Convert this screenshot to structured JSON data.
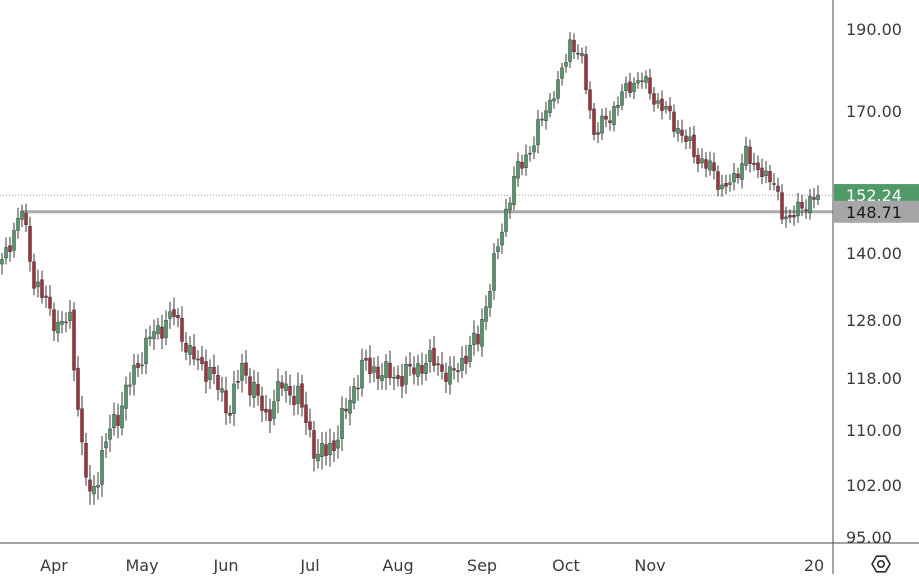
{
  "colors": {
    "background": "#ffffff",
    "up": "#4f9a67",
    "down": "#a3303a",
    "wick": "#3a3a3a",
    "axis_line": "#4a4a4a",
    "axis_text": "#3b3b3b",
    "level_line": "#a8a8a8",
    "last_price_dotted": "#9a9a9a",
    "last_price_badge": "#4f9a67",
    "level_badge": "#a6a6a6"
  },
  "chart_data": {
    "type": "candlestick",
    "ylim": [
      95,
      193
    ],
    "y_ticks": [
      95,
      102,
      110,
      118,
      128,
      140,
      170,
      190
    ],
    "y_tick_labels": [
      "95.00",
      "102.00",
      "110.00",
      "118.00",
      "128.00",
      "140.00",
      "170.00",
      "190.00"
    ],
    "x_tick_labels": [
      "Apr",
      "May",
      "Jun",
      "Jul",
      "Aug",
      "Sep",
      "Oct",
      "Nov",
      "20"
    ],
    "x_tick_indices": [
      13,
      35,
      56,
      77,
      99,
      120,
      141,
      162,
      203
    ],
    "total_bars": 205,
    "last_price": 152.24,
    "last_price_label": "152.24",
    "horizontal_level": 148.71,
    "horizontal_level_label": "148.71",
    "horizontal_level_start_index": 5,
    "settings_icon": "gear-icon",
    "waypoints": [
      [
        0,
        138
      ],
      [
        5,
        149
      ],
      [
        8,
        135
      ],
      [
        14,
        127
      ],
      [
        17,
        128
      ],
      [
        20,
        107
      ],
      [
        22,
        100
      ],
      [
        27,
        110
      ],
      [
        30,
        114
      ],
      [
        33,
        119
      ],
      [
        37,
        125
      ],
      [
        40,
        127
      ],
      [
        43,
        129
      ],
      [
        47,
        122
      ],
      [
        52,
        119
      ],
      [
        57,
        113
      ],
      [
        60,
        120
      ],
      [
        66,
        112
      ],
      [
        70,
        117
      ],
      [
        74,
        115
      ],
      [
        79,
        106
      ],
      [
        83,
        108
      ],
      [
        86,
        113
      ],
      [
        90,
        120
      ],
      [
        95,
        119
      ],
      [
        99,
        118
      ],
      [
        104,
        120
      ],
      [
        108,
        121
      ],
      [
        112,
        118
      ],
      [
        116,
        122
      ],
      [
        119,
        125
      ],
      [
        122,
        134
      ],
      [
        126,
        149
      ],
      [
        129,
        158
      ],
      [
        133,
        163
      ],
      [
        135,
        169
      ],
      [
        139,
        176
      ],
      [
        142,
        187
      ],
      [
        145,
        182
      ],
      [
        148,
        165
      ],
      [
        152,
        169
      ],
      [
        155,
        174
      ],
      [
        158,
        177
      ],
      [
        160,
        178
      ],
      [
        163,
        173
      ],
      [
        166,
        170
      ],
      [
        170,
        165
      ],
      [
        174,
        160
      ],
      [
        177,
        158
      ],
      [
        180,
        154
      ],
      [
        183,
        155
      ],
      [
        186,
        162
      ],
      [
        188,
        157
      ],
      [
        190,
        158
      ],
      [
        193,
        154
      ],
      [
        195,
        149
      ],
      [
        197,
        147
      ],
      [
        200,
        150
      ],
      [
        204,
        152.24
      ]
    ]
  }
}
